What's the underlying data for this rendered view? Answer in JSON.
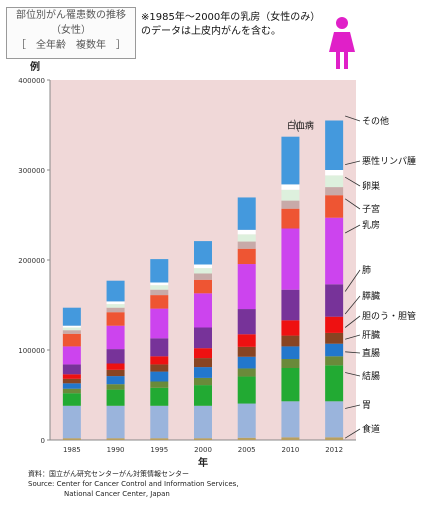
{
  "title": {
    "line1": "部位別がん罹患数の推移",
    "line2": "（女性）",
    "line3": "［　全年齢　複数年　］"
  },
  "note": {
    "line1": "※1985年～2000年の乳房（女性のみ）",
    "line2": "のデータは上皮内がんを含む。"
  },
  "icon": {
    "name": "female-person-icon",
    "color": "#e020c8"
  },
  "source": {
    "line1": "資料：国立がん研究センターがん対策情報センター",
    "line2": "Source: Center for Cancer Control and Information Services,",
    "line3": "National Cancer Center, Japan"
  },
  "chart_data": {
    "type": "bar",
    "stacked": true,
    "ylabel": "例",
    "xlabel": "年",
    "ylim": [
      0,
      400000
    ],
    "yticks": [
      "0",
      "100000",
      "200000",
      "300000",
      "400000"
    ],
    "categories": [
      "1985",
      "1990",
      "1995",
      "2000",
      "2005",
      "2010",
      "2012"
    ],
    "plot_background": "#f0d8d8",
    "grid": false,
    "series": [
      {
        "name": "食道",
        "color": "#b8a060",
        "values": [
          2000,
          2000,
          2000,
          2000,
          2500,
          3000,
          3000
        ]
      },
      {
        "name": "胃",
        "color": "#9ab4dc",
        "values": [
          36000,
          36000,
          36000,
          36000,
          38000,
          40000,
          40000
        ]
      },
      {
        "name": "結腸",
        "color": "#22aa33",
        "values": [
          14000,
          18000,
          20000,
          23000,
          30000,
          37000,
          40000
        ]
      },
      {
        "name": "直腸",
        "color": "#6a8a3a",
        "values": [
          5000,
          6000,
          7000,
          8000,
          9000,
          10000,
          10000
        ]
      },
      {
        "name": "肝臓",
        "color": "#2277cc",
        "values": [
          6000,
          9000,
          11000,
          12000,
          13000,
          14000,
          14000
        ]
      },
      {
        "name": "胆のう・胆管",
        "color": "#884422",
        "values": [
          5000,
          7000,
          8000,
          10000,
          11000,
          12000,
          12000
        ]
      },
      {
        "name": "膵臓",
        "color": "#ee1111",
        "values": [
          5000,
          7000,
          9000,
          11000,
          14000,
          17000,
          18000
        ]
      },
      {
        "name": "肺",
        "color": "#773399",
        "values": [
          11000,
          16000,
          20000,
          23000,
          28000,
          34000,
          36000
        ]
      },
      {
        "name": "乳房",
        "color": "#cc44ee",
        "values": [
          20000,
          26000,
          33000,
          38000,
          50000,
          68000,
          74000
        ]
      },
      {
        "name": "子宮",
        "color": "#ee5533",
        "values": [
          14000,
          15000,
          15000,
          15000,
          17000,
          22000,
          25000
        ]
      },
      {
        "name": "卵巣",
        "color": "#c8aaa8",
        "values": [
          4000,
          5000,
          6000,
          7000,
          8000,
          9000,
          9000
        ]
      },
      {
        "name": "悪性リンパ腫",
        "color": "#ddf0dd",
        "values": [
          3000,
          4000,
          5000,
          6000,
          8000,
          12000,
          13000
        ]
      },
      {
        "name": "白血病",
        "color": "#ffffff",
        "values": [
          2000,
          3000,
          3000,
          4000,
          5000,
          6000,
          6000
        ]
      },
      {
        "name": "その他",
        "color": "#4499dd",
        "values": [
          20000,
          23000,
          26000,
          26000,
          36000,
          53000,
          55000
        ]
      }
    ],
    "labels": [
      {
        "name": "その他",
        "anchor_value": 360000,
        "text_y": 124
      },
      {
        "name": "悪性リンパ腫",
        "anchor_value": 306000,
        "text_y": 164
      },
      {
        "name": "卵巣",
        "anchor_value": 292000,
        "text_y": 189
      },
      {
        "name": "子宮",
        "anchor_value": 268000,
        "text_y": 212
      },
      {
        "name": "乳房",
        "anchor_value": 230000,
        "text_y": 228
      },
      {
        "name": "肺",
        "anchor_value": 165000,
        "text_y": 273
      },
      {
        "name": "膵臓",
        "anchor_value": 140000,
        "text_y": 299
      },
      {
        "name": "胆のう・胆管",
        "anchor_value": 125000,
        "text_y": 319
      },
      {
        "name": "肝臓",
        "anchor_value": 112000,
        "text_y": 338
      },
      {
        "name": "直腸",
        "anchor_value": 98000,
        "text_y": 356
      },
      {
        "name": "結腸",
        "anchor_value": 75000,
        "text_y": 379
      },
      {
        "name": "胃",
        "anchor_value": 35000,
        "text_y": 408
      },
      {
        "name": "食道",
        "anchor_value": 2000,
        "text_y": 432
      }
    ],
    "top_label": {
      "name": "白血病",
      "bar_index": 5
    }
  }
}
